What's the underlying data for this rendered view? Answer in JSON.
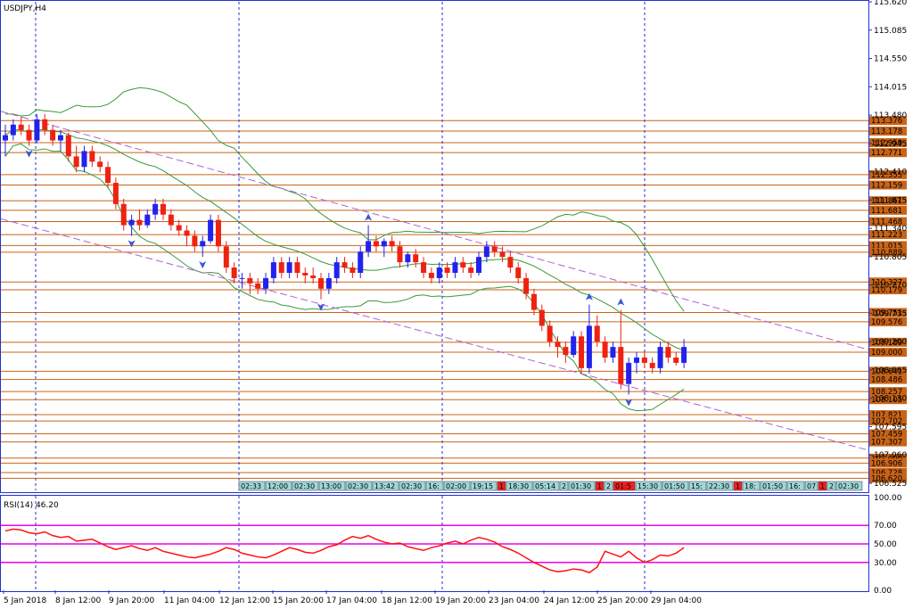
{
  "chart_data": [
    {
      "type": "candlestick",
      "title": "USDJPY,H4",
      "ylim": [
        106.525,
        115.62
      ],
      "y_ticks": [
        "115.620",
        "115.085",
        "114.550",
        "114.015",
        "113.480",
        "112.945",
        "112.410",
        "111.875",
        "111.340",
        "110.805",
        "110.270",
        "109.735",
        "109.200",
        "108.665",
        "108.130",
        "107.595",
        "107.060",
        "106.525"
      ],
      "x_tick_labels": [
        "5 Jan 2018",
        "8 Jan 12:00",
        "9 Jan 20:00",
        "11 Jan 04:00",
        "12 Jan 12:00",
        "15 Jan 20:00",
        "17 Jan 04:00",
        "18 Jan 12:00",
        "19 Jan 20:00",
        "23 Jan 04:00",
        "24 Jan 12:00",
        "25 Jan 20:00",
        "29 Jan 04:00"
      ],
      "period_separators": [
        "8 Jan",
        "12 Jan",
        "19 Jan",
        "26 Jan"
      ],
      "horizontal_levels": [
        {
          "price": 113.376,
          "label": "113.376"
        },
        {
          "price": 113.178,
          "label": "113.178"
        },
        {
          "price": 112.959,
          "label": "112.959"
        },
        {
          "price": 112.771,
          "label": "112.771"
        },
        {
          "price": 112.355,
          "label": "112.355"
        },
        {
          "price": 112.159,
          "label": "112.159"
        },
        {
          "price": 111.861,
          "label": "111.861"
        },
        {
          "price": 111.681,
          "label": "111.681"
        },
        {
          "price": 111.468,
          "label": "111.468"
        },
        {
          "price": 111.223,
          "label": "111.223"
        },
        {
          "price": 111.015,
          "label": "111.015"
        },
        {
          "price": 110.889,
          "label": "110.889"
        },
        {
          "price": 110.327,
          "label": "110.327"
        },
        {
          "price": 110.179,
          "label": "110.179"
        },
        {
          "price": 109.751,
          "label": "109.751"
        },
        {
          "price": 109.576,
          "label": "109.576"
        },
        {
          "price": 109.189,
          "label": "109.189"
        },
        {
          "price": 109.0,
          "label": "109.000"
        },
        {
          "price": 108.641,
          "label": "108.641"
        },
        {
          "price": 108.486,
          "label": "108.486"
        },
        {
          "price": 108.257,
          "label": "108.257"
        },
        {
          "price": 108.105,
          "label": "108.105"
        },
        {
          "price": 107.821,
          "label": "107.821"
        },
        {
          "price": 107.702,
          "label": "107.702"
        },
        {
          "price": 107.459,
          "label": "107.459"
        },
        {
          "price": 107.307,
          "label": "107.307"
        },
        {
          "price": 107.0,
          "label": "107.000"
        },
        {
          "price": 106.906,
          "label": "106.906"
        },
        {
          "price": 106.728,
          "label": "106.728"
        },
        {
          "price": 106.62,
          "label": "106.620"
        }
      ],
      "channel_lines": [
        {
          "name": "upper",
          "x0": 0,
          "y0": 113.55,
          "x1": 1,
          "y1": 109.05
        },
        {
          "name": "lower",
          "x0": 0,
          "y0": 111.52,
          "x1": 1,
          "y1": 107.15
        }
      ],
      "time_labels": [
        "02:33",
        "12:00",
        "02:30",
        "13:00",
        "02:30",
        "13:42",
        "02:30",
        "16:",
        "02:00",
        "19:15",
        "1",
        "18:30",
        "05:14",
        "2",
        "01:30",
        "1",
        "2",
        "01:5",
        "15:30",
        "01:50",
        "15:",
        "22:30",
        "1",
        "18:",
        "01:50",
        "16:",
        "07",
        "1",
        "2",
        "02:30",
        "1",
        "01:50",
        "1",
        "21:30"
      ],
      "candles": [
        [
          113.0,
          113.3,
          112.7,
          113.1
        ],
        [
          113.1,
          113.4,
          113.0,
          113.3
        ],
        [
          113.3,
          113.45,
          113.1,
          113.2
        ],
        [
          113.2,
          113.3,
          112.9,
          113.0
        ],
        [
          113.0,
          113.5,
          112.95,
          113.4
        ],
        [
          113.4,
          113.5,
          113.1,
          113.2
        ],
        [
          113.2,
          113.3,
          112.9,
          113.0
        ],
        [
          113.0,
          113.2,
          112.8,
          113.1
        ],
        [
          113.1,
          113.15,
          112.6,
          112.7
        ],
        [
          112.7,
          112.9,
          112.4,
          112.5
        ],
        [
          112.5,
          112.9,
          112.4,
          112.8
        ],
        [
          112.8,
          112.9,
          112.5,
          112.6
        ],
        [
          112.6,
          112.7,
          112.4,
          112.5
        ],
        [
          112.5,
          112.6,
          112.1,
          112.2
        ],
        [
          112.2,
          112.3,
          111.7,
          111.8
        ],
        [
          111.8,
          111.9,
          111.3,
          111.4
        ],
        [
          111.4,
          111.6,
          111.2,
          111.5
        ],
        [
          111.5,
          111.7,
          111.3,
          111.4
        ],
        [
          111.4,
          111.7,
          111.35,
          111.6
        ],
        [
          111.6,
          111.9,
          111.5,
          111.8
        ],
        [
          111.8,
          111.9,
          111.5,
          111.6
        ],
        [
          111.6,
          111.7,
          111.3,
          111.4
        ],
        [
          111.4,
          111.5,
          111.2,
          111.3
        ],
        [
          111.3,
          111.4,
          111.0,
          111.2
        ],
        [
          111.2,
          111.3,
          110.9,
          111.0
        ],
        [
          111.0,
          111.2,
          110.8,
          111.1
        ],
        [
          111.1,
          111.6,
          111.05,
          111.5
        ],
        [
          111.5,
          111.6,
          110.9,
          111.0
        ],
        [
          111.0,
          111.1,
          110.5,
          110.6
        ],
        [
          110.6,
          110.7,
          110.3,
          110.4
        ],
        [
          110.4,
          110.5,
          110.2,
          110.4
        ],
        [
          110.4,
          110.5,
          110.1,
          110.3
        ],
        [
          110.3,
          110.4,
          110.1,
          110.2
        ],
        [
          110.2,
          110.5,
          110.1,
          110.4
        ],
        [
          110.4,
          110.8,
          110.3,
          110.7
        ],
        [
          110.7,
          110.8,
          110.4,
          110.5
        ],
        [
          110.5,
          110.8,
          110.4,
          110.7
        ],
        [
          110.7,
          110.8,
          110.4,
          110.5
        ],
        [
          110.5,
          110.6,
          110.3,
          110.45
        ],
        [
          110.45,
          110.6,
          110.3,
          110.4
        ],
        [
          110.4,
          110.5,
          110.0,
          110.2
        ],
        [
          110.2,
          110.5,
          110.1,
          110.4
        ],
        [
          110.4,
          110.8,
          110.3,
          110.7
        ],
        [
          110.7,
          110.8,
          110.5,
          110.6
        ],
        [
          110.6,
          110.7,
          110.4,
          110.5
        ],
        [
          110.5,
          111.0,
          110.4,
          110.9
        ],
        [
          110.9,
          111.4,
          110.8,
          111.1
        ],
        [
          111.1,
          111.2,
          110.9,
          111.0
        ],
        [
          111.0,
          111.15,
          110.8,
          111.1
        ],
        [
          111.1,
          111.2,
          110.9,
          111.0
        ],
        [
          111.0,
          111.1,
          110.6,
          110.7
        ],
        [
          110.7,
          110.9,
          110.6,
          110.85
        ],
        [
          110.85,
          110.95,
          110.6,
          110.7
        ],
        [
          110.7,
          110.8,
          110.4,
          110.5
        ],
        [
          110.5,
          110.6,
          110.3,
          110.4
        ],
        [
          110.4,
          110.7,
          110.3,
          110.6
        ],
        [
          110.6,
          110.7,
          110.4,
          110.5
        ],
        [
          110.5,
          110.8,
          110.4,
          110.7
        ],
        [
          110.7,
          110.8,
          110.5,
          110.6
        ],
        [
          110.6,
          110.7,
          110.4,
          110.5
        ],
        [
          110.5,
          110.9,
          110.45,
          110.8
        ],
        [
          110.8,
          111.1,
          110.7,
          111.0
        ],
        [
          111.0,
          111.1,
          110.8,
          110.9
        ],
        [
          110.9,
          111.0,
          110.7,
          110.8
        ],
        [
          110.8,
          110.9,
          110.5,
          110.6
        ],
        [
          110.6,
          110.7,
          110.3,
          110.4
        ],
        [
          110.4,
          110.5,
          110.0,
          110.1
        ],
        [
          110.1,
          110.2,
          109.7,
          109.8
        ],
        [
          109.8,
          109.9,
          109.4,
          109.5
        ],
        [
          109.5,
          109.6,
          109.1,
          109.2
        ],
        [
          109.2,
          109.3,
          108.9,
          109.1
        ],
        [
          109.1,
          109.2,
          108.8,
          108.95
        ],
        [
          108.95,
          109.4,
          108.9,
          109.3
        ],
        [
          109.3,
          109.4,
          108.6,
          108.7
        ],
        [
          108.7,
          109.9,
          108.6,
          109.5
        ],
        [
          109.5,
          109.7,
          109.1,
          109.2
        ],
        [
          109.2,
          109.3,
          108.8,
          108.9
        ],
        [
          108.9,
          109.2,
          108.8,
          109.1
        ],
        [
          109.1,
          109.8,
          108.3,
          108.4
        ],
        [
          108.4,
          108.9,
          108.2,
          108.8
        ],
        [
          108.8,
          109.0,
          108.6,
          108.9
        ],
        [
          108.9,
          109.0,
          108.7,
          108.8
        ],
        [
          108.8,
          108.9,
          108.6,
          108.7
        ],
        [
          108.7,
          109.2,
          108.6,
          109.1
        ],
        [
          109.1,
          109.2,
          108.8,
          108.9
        ],
        [
          108.9,
          109.0,
          108.75,
          108.8
        ],
        [
          108.8,
          109.25,
          108.7,
          109.1
        ]
      ]
    },
    {
      "type": "line",
      "title": "RSI(14) 46.20",
      "ylim": [
        0,
        100
      ],
      "y_ticks": [
        "100.00",
        "70.00",
        "50.00",
        "30.00",
        "0.00"
      ],
      "levels": [
        70,
        50,
        30
      ],
      "values": [
        64,
        66,
        65,
        62,
        61,
        63,
        59,
        57,
        58,
        53,
        54,
        55,
        51,
        47,
        44,
        46,
        48,
        45,
        43,
        46,
        42,
        40,
        38,
        36,
        35,
        37,
        39,
        42,
        46,
        44,
        40,
        38,
        36,
        35,
        38,
        42,
        46,
        44,
        41,
        40,
        43,
        47,
        49,
        54,
        58,
        56,
        59,
        55,
        52,
        50,
        51,
        47,
        45,
        43,
        46,
        48,
        51,
        53,
        50,
        54,
        57,
        55,
        52,
        47,
        44,
        40,
        35,
        30,
        26,
        22,
        20,
        21,
        23,
        22,
        19,
        25,
        42,
        39,
        36,
        42,
        35,
        30,
        33,
        38,
        37,
        40,
        46
      ]
    }
  ],
  "colors": {
    "up_body": "#2222ee",
    "down_body": "#ee2211",
    "level_line": "#c86418",
    "channel": "#b060d8",
    "bands": "#3a9a3a",
    "separator": "#2233cc",
    "rsi_line": "#ff1010",
    "rsi_level": "#ee00ee",
    "axis": "#2233cc",
    "arrows": "#3a55d8"
  }
}
